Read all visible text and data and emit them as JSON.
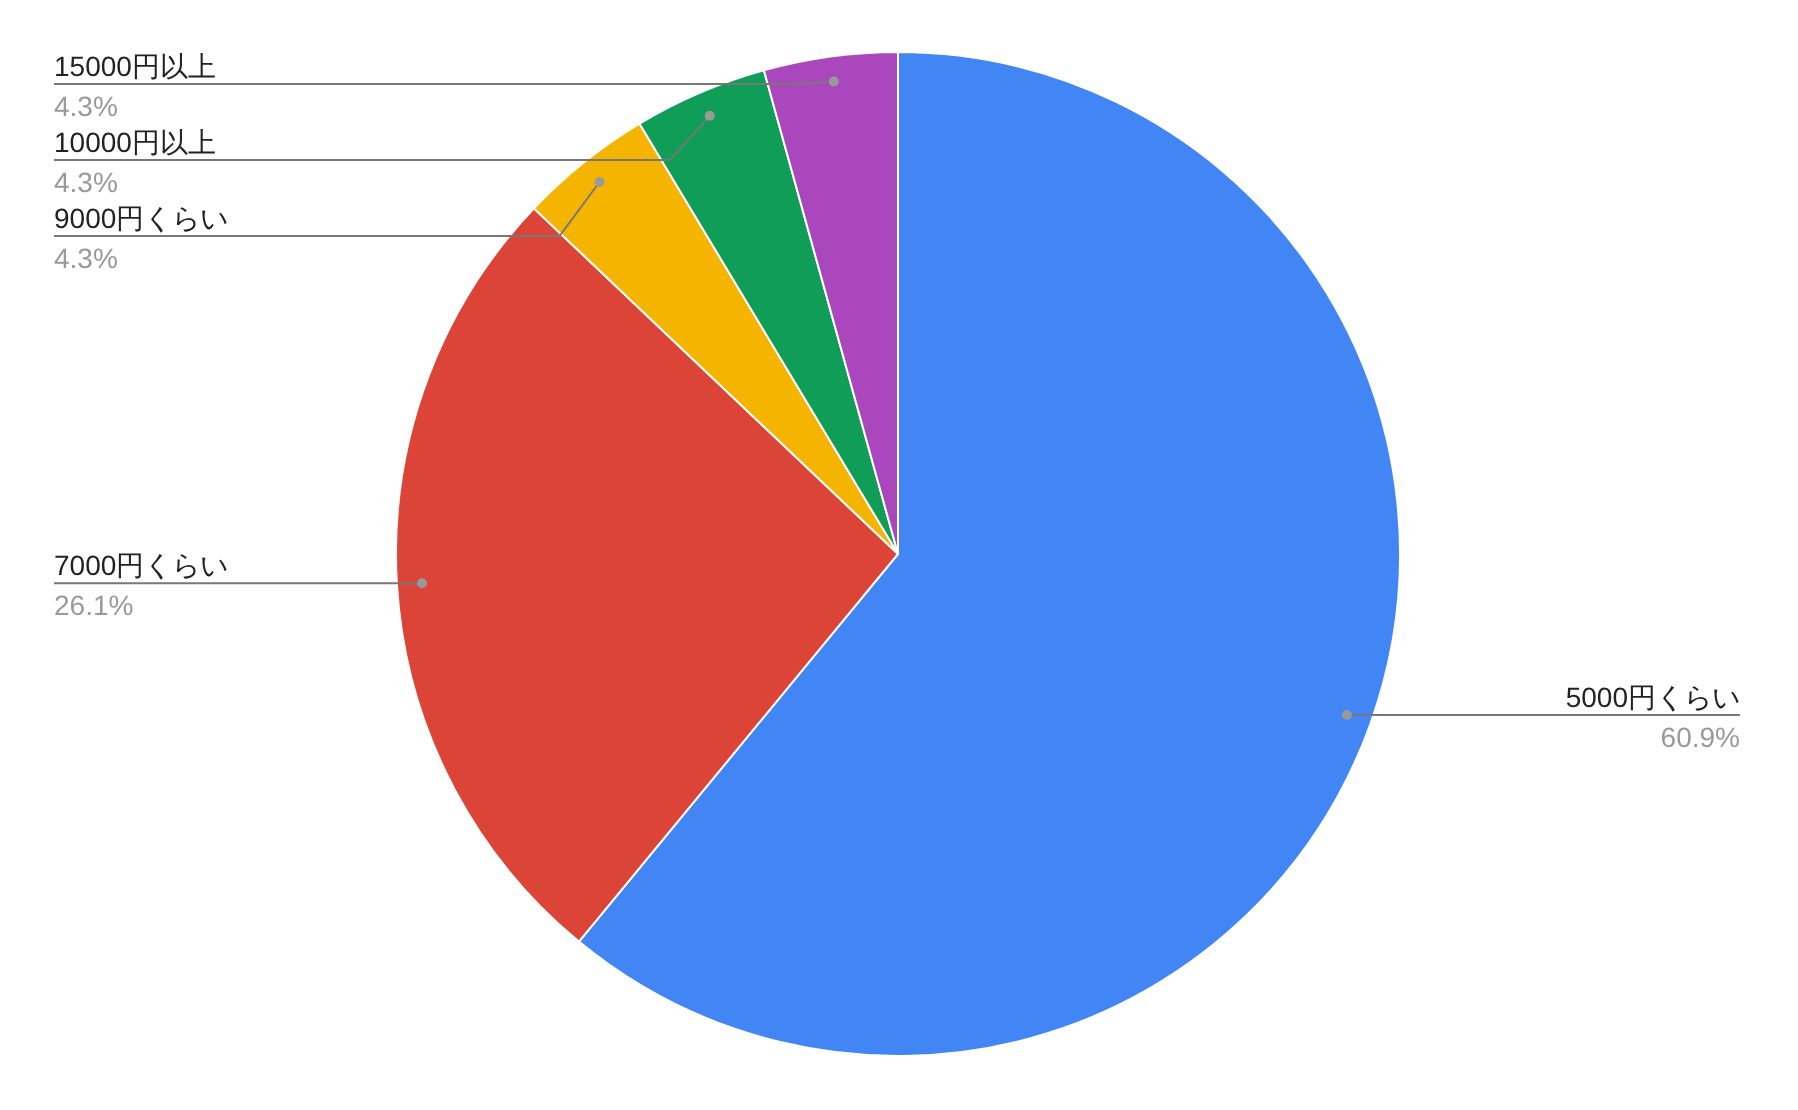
{
  "chart_data": {
    "type": "pie",
    "categories": [
      "5000円くらい",
      "7000円くらい",
      "9000円くらい",
      "10000円以上",
      "15000円以上"
    ],
    "values": [
      60.9,
      26.1,
      4.3,
      4.3,
      4.3
    ],
    "value_labels": [
      "60.9%",
      "26.1%",
      "4.3%",
      "4.3%",
      "4.3%"
    ],
    "colors": [
      "#4285f4",
      "#db4437",
      "#f4b400",
      "#0f9d58",
      "#ab47bc"
    ]
  }
}
